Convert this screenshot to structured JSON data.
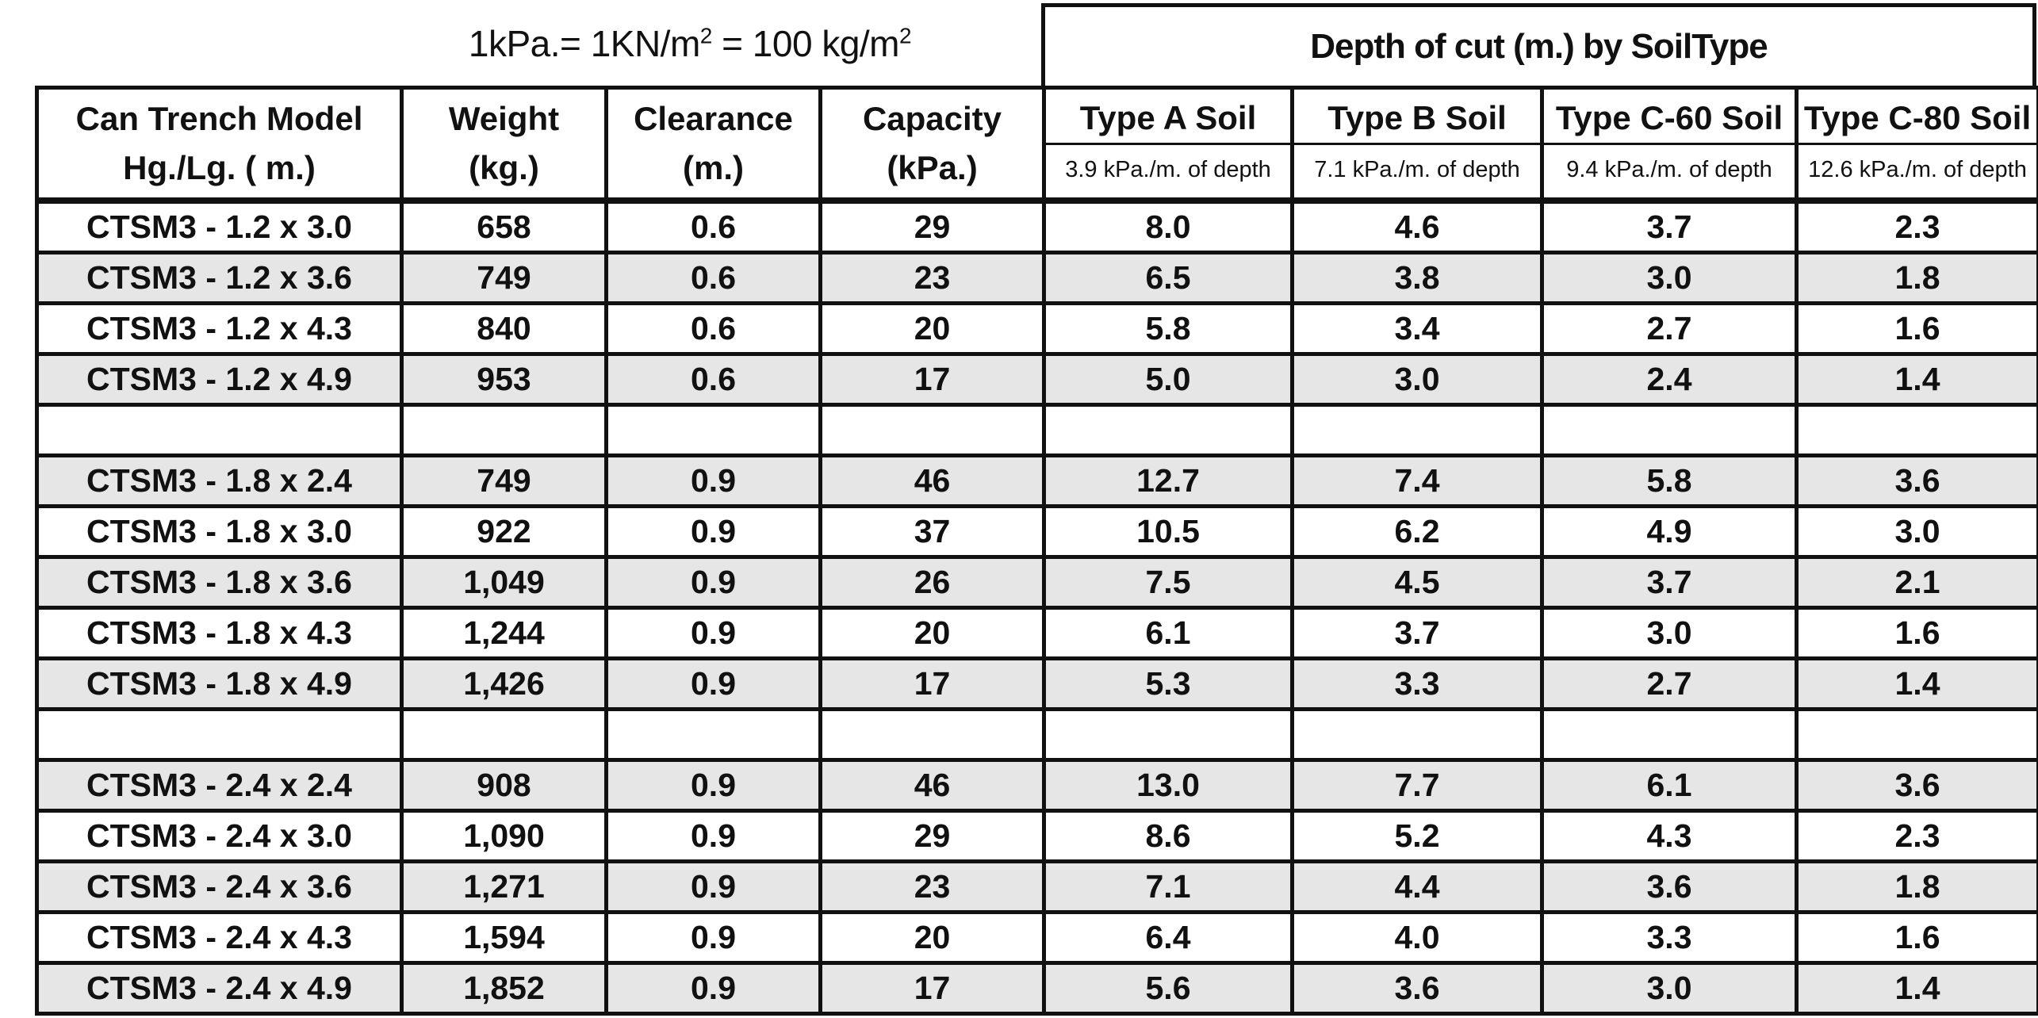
{
  "unit_note": {
    "prefix": "1kPa.= 1KN/m",
    "sup1": "2",
    "middle": " = 100 kg/m",
    "sup2": "2"
  },
  "depth_group_title": "Depth of cut (m.) by SoilType",
  "columns": [
    {
      "main": "Can Trench Model",
      "sub": "Hg./Lg. ( m.)"
    },
    {
      "main": "Weight",
      "sub": "(kg.)"
    },
    {
      "main": "Clearance",
      "sub": "(m.)"
    },
    {
      "main": "Capacity",
      "sub": "(kPa.)"
    },
    {
      "main": "Type A Soil",
      "note": "3.9 kPa./m. of depth"
    },
    {
      "main": "Type B Soil",
      "note": "7.1 kPa./m. of depth"
    },
    {
      "main": "Type C-60 Soil",
      "note": "9.4 kPa./m. of depth"
    },
    {
      "main": "Type C-80 Soil",
      "note": "12.6 kPa./m. of depth"
    }
  ],
  "rows": [
    {
      "shade": false,
      "cells": [
        "CTSM3 - 1.2 x 3.0",
        "658",
        "0.6",
        "29",
        "8.0",
        "4.6",
        "3.7",
        "2.3"
      ]
    },
    {
      "shade": true,
      "cells": [
        "CTSM3 - 1.2 x 3.6",
        "749",
        "0.6",
        "23",
        "6.5",
        "3.8",
        "3.0",
        "1.8"
      ]
    },
    {
      "shade": false,
      "cells": [
        "CTSM3 - 1.2 x 4.3",
        "840",
        "0.6",
        "20",
        "5.8",
        "3.4",
        "2.7",
        "1.6"
      ]
    },
    {
      "shade": true,
      "cells": [
        "CTSM3 - 1.2 x 4.9",
        "953",
        "0.6",
        "17",
        "5.0",
        "3.0",
        "2.4",
        "1.4"
      ]
    },
    {
      "spacer": true
    },
    {
      "shade": true,
      "cells": [
        "CTSM3 - 1.8 x 2.4",
        "749",
        "0.9",
        "46",
        "12.7",
        "7.4",
        "5.8",
        "3.6"
      ]
    },
    {
      "shade": false,
      "cells": [
        "CTSM3 - 1.8 x 3.0",
        "922",
        "0.9",
        "37",
        "10.5",
        "6.2",
        "4.9",
        "3.0"
      ]
    },
    {
      "shade": true,
      "cells": [
        "CTSM3 - 1.8 x 3.6",
        "1,049",
        "0.9",
        "26",
        "7.5",
        "4.5",
        "3.7",
        "2.1"
      ]
    },
    {
      "shade": false,
      "cells": [
        "CTSM3 - 1.8 x 4.3",
        "1,244",
        "0.9",
        "20",
        "6.1",
        "3.7",
        "3.0",
        "1.6"
      ]
    },
    {
      "shade": true,
      "cells": [
        "CTSM3 - 1.8 x 4.9",
        "1,426",
        "0.9",
        "17",
        "5.3",
        "3.3",
        "2.7",
        "1.4"
      ]
    },
    {
      "spacer": true
    },
    {
      "shade": true,
      "cells": [
        "CTSM3 - 2.4 x 2.4",
        "908",
        "0.9",
        "46",
        "13.0",
        "7.7",
        "6.1",
        "3.6"
      ]
    },
    {
      "shade": false,
      "cells": [
        "CTSM3 - 2.4 x 3.0",
        "1,090",
        "0.9",
        "29",
        "8.6",
        "5.2",
        "4.3",
        "2.3"
      ]
    },
    {
      "shade": true,
      "cells": [
        "CTSM3 - 2.4 x 3.6",
        "1,271",
        "0.9",
        "23",
        "7.1",
        "4.4",
        "3.6",
        "1.8"
      ]
    },
    {
      "shade": false,
      "cells": [
        "CTSM3 - 2.4 x 4.3",
        "1,594",
        "0.9",
        "20",
        "6.4",
        "4.0",
        "3.3",
        "1.6"
      ]
    },
    {
      "shade": true,
      "cells": [
        "CTSM3 - 2.4 x 4.9",
        "1,852",
        "0.9",
        "17",
        "5.6",
        "3.6",
        "3.0",
        "1.4"
      ]
    }
  ]
}
